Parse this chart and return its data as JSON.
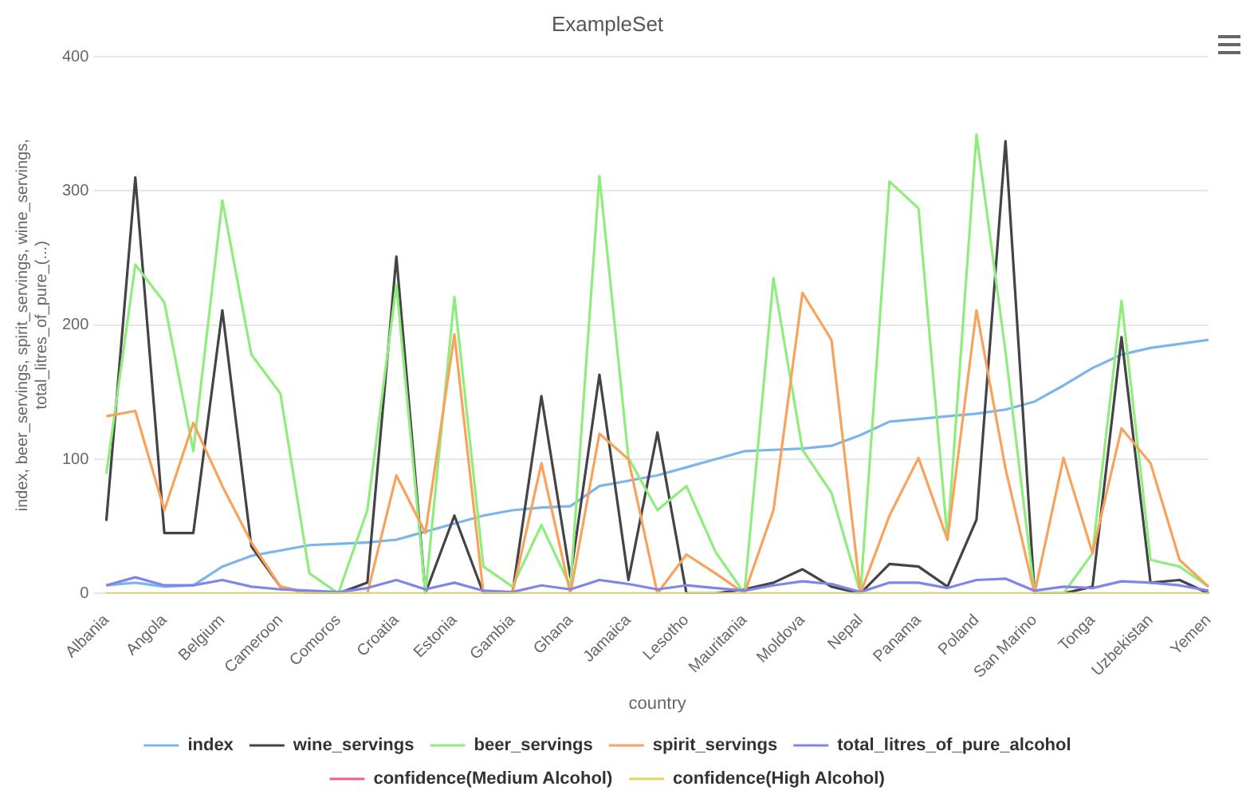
{
  "chart_data": {
    "type": "line",
    "title": "ExampleSet",
    "xlabel": "country",
    "ylabel": "index, beer_servings, spirit_servings, wine_servings,\ntotal_litres_of_pure_(...)",
    "categories": [
      "Albania",
      null,
      "Angola",
      null,
      "Belgium",
      null,
      "Cameroon",
      null,
      "Comoros",
      null,
      "Croatia",
      null,
      "Estonia",
      null,
      "Gambia",
      null,
      "Ghana",
      null,
      "Jamaica",
      null,
      "Lesotho",
      null,
      "Mauritania",
      null,
      "Moldova",
      null,
      "Nepal",
      null,
      "Panama",
      null,
      "Poland",
      null,
      "San Marino",
      null,
      "Tonga",
      null,
      "Uzbekistan",
      null,
      "Yemen"
    ],
    "ylim": [
      0,
      400
    ],
    "yticks": [
      0,
      100,
      200,
      300,
      400
    ],
    "grid": "y",
    "legend": "bottom",
    "marker": "none",
    "line_style": "solid",
    "series": [
      {
        "name": "index",
        "color": "#7cb5ec",
        "values": [
          6,
          8,
          5,
          6,
          20,
          28,
          32,
          36,
          37,
          38,
          40,
          46,
          52,
          58,
          62,
          64,
          65,
          80,
          84,
          88,
          94,
          100,
          106,
          107,
          108,
          110,
          118,
          128,
          130,
          132,
          134,
          137,
          143,
          155,
          168,
          178,
          183,
          186,
          189
        ]
      },
      {
        "name": "wine_servings",
        "color": "#434348",
        "values": [
          54,
          310,
          45,
          45,
          211,
          35,
          5,
          0,
          0,
          8,
          251,
          0,
          58,
          0,
          0,
          147,
          12,
          163,
          10,
          120,
          0,
          0,
          3,
          8,
          18,
          5,
          0,
          22,
          20,
          5,
          55,
          337,
          0,
          0,
          5,
          191,
          8,
          10,
          0
        ]
      },
      {
        "name": "beer_servings",
        "color": "#90ed7d",
        "values": [
          89,
          245,
          217,
          106,
          293,
          178,
          149,
          15,
          0,
          62,
          230,
          0,
          221,
          20,
          5,
          51,
          5,
          311,
          101,
          62,
          80,
          31,
          0,
          235,
          107,
          75,
          0,
          307,
          287,
          40,
          342,
          180,
          0,
          0,
          30,
          218,
          25,
          20,
          5
        ]
      },
      {
        "name": "spirit_servings",
        "color": "#f7a35c",
        "values": [
          132,
          136,
          62,
          127,
          80,
          38,
          5,
          0,
          0,
          0,
          88,
          45,
          193,
          0,
          0,
          97,
          0,
          119,
          100,
          0,
          29,
          15,
          0,
          62,
          224,
          189,
          0,
          58,
          101,
          40,
          211,
          93,
          0,
          101,
          30,
          123,
          97,
          25,
          5
        ]
      },
      {
        "name": "total_litres_of_pure_alcohol",
        "color": "#8085e9",
        "values": [
          6,
          12,
          6,
          6,
          10,
          5,
          3,
          2,
          1,
          4,
          10,
          3,
          8,
          2,
          1,
          6,
          3,
          10,
          7,
          3,
          6,
          4,
          2,
          6,
          9,
          7,
          1,
          8,
          8,
          4,
          10,
          11,
          2,
          5,
          4,
          9,
          8,
          6,
          2
        ]
      },
      {
        "name": "confidence(Medium Alcohol)",
        "color": "#f15c80",
        "values": [
          null,
          null,
          null,
          null,
          null,
          null,
          null,
          null,
          null,
          null,
          null,
          null,
          null,
          null,
          null,
          null,
          null,
          null,
          null,
          null,
          null,
          null,
          null,
          null,
          null,
          null,
          null,
          null,
          null,
          null,
          null,
          null,
          null,
          null,
          null,
          null,
          null,
          null,
          null
        ]
      },
      {
        "name": "confidence(High Alcohol)",
        "color": "#e4d354",
        "values": [
          0,
          0,
          0,
          0,
          0,
          0,
          0,
          0,
          0,
          0,
          0,
          0,
          0,
          0,
          0,
          0,
          0,
          0,
          0,
          0,
          0,
          0,
          0,
          0,
          0,
          0,
          0,
          0,
          0,
          0,
          0,
          0,
          0,
          0,
          0,
          0,
          0,
          0,
          0
        ]
      }
    ]
  }
}
